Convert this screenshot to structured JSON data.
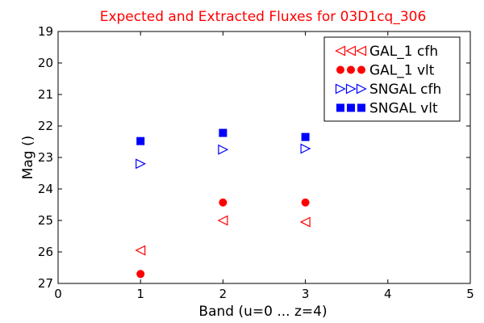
{
  "chart_data": {
    "type": "scatter",
    "title": "Expected and Extracted Fluxes for 03D1cq_306",
    "title_color": "#ff0000",
    "xlabel": "Band (u=0 ... z=4)",
    "ylabel": "Mag ()",
    "xlim": [
      0,
      5
    ],
    "ylim": [
      27,
      19
    ],
    "y_inverted": true,
    "x_ticks": [
      "0",
      "1",
      "2",
      "3",
      "4",
      "5"
    ],
    "y_ticks": [
      "19",
      "20",
      "21",
      "22",
      "23",
      "24",
      "25",
      "26",
      "27"
    ],
    "grid": false,
    "legend_position": "top-right",
    "series": [
      {
        "name": "GAL_1 cfh",
        "marker": "triangle-left-open",
        "color": "#ff0000",
        "x": [
          1,
          2,
          3
        ],
        "y": [
          25.95,
          25.0,
          25.05
        ]
      },
      {
        "name": "GAL_1 vlt",
        "marker": "circle-filled",
        "color": "#ff0000",
        "x": [
          1,
          2,
          3
        ],
        "y": [
          26.7,
          24.43,
          24.43
        ]
      },
      {
        "name": "SNGAL cfh",
        "marker": "triangle-right-open",
        "color": "#0000ff",
        "x": [
          1,
          2,
          3
        ],
        "y": [
          23.2,
          22.75,
          22.72
        ]
      },
      {
        "name": "SNGAL vlt",
        "marker": "square-filled",
        "color": "#0000ff",
        "x": [
          1,
          2,
          3
        ],
        "y": [
          22.48,
          22.22,
          22.35
        ]
      }
    ]
  }
}
